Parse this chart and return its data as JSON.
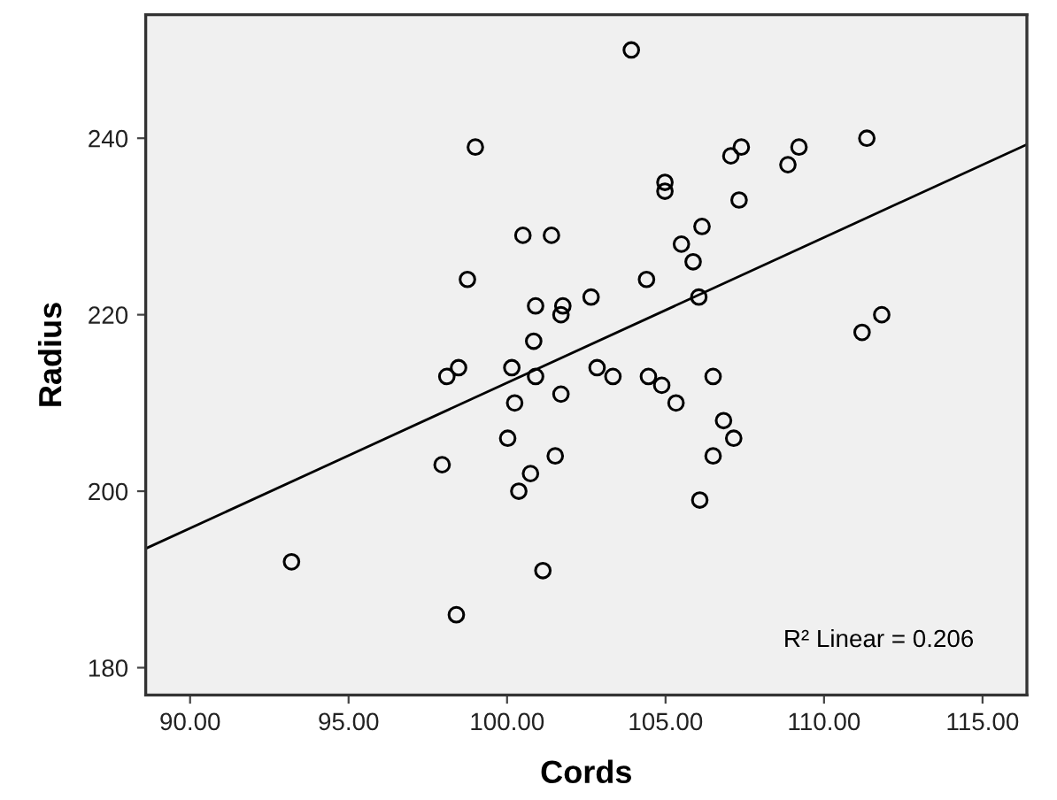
{
  "chart_data": {
    "type": "scatter",
    "xlabel": "Cords",
    "ylabel": "Radius",
    "xlim": [
      88.6,
      116.4
    ],
    "ylim": [
      176.9,
      254.0
    ],
    "xticks": [
      {
        "value": 90,
        "label": "90.00"
      },
      {
        "value": 95,
        "label": "95.00"
      },
      {
        "value": 100,
        "label": "100.00"
      },
      {
        "value": 105,
        "label": "105.00"
      },
      {
        "value": 110,
        "label": "110.00"
      },
      {
        "value": 115,
        "label": "115.00"
      }
    ],
    "yticks": [
      180,
      200,
      220,
      240
    ],
    "grid": false,
    "legend": false,
    "annotations": [
      "R² Linear = 0.206"
    ],
    "series": [
      {
        "type": "scatter",
        "color": "#000000",
        "marker": "circle",
        "x": [
          99.0,
          100.5,
          101.4,
          98.75,
          100.9,
          101.76,
          101.7,
          102.65,
          100.84,
          98.1,
          98.47,
          100.15,
          100.9,
          102.84,
          101.7,
          100.24,
          100.02,
          97.95,
          101.52,
          100.74,
          100.37,
          93.2,
          101.13,
          98.4,
          103.92,
          111.35,
          107.39,
          107.06,
          109.21,
          108.86,
          104.98,
          104.98,
          107.32,
          106.15,
          105.5,
          105.87,
          104.4,
          106.05,
          111.82,
          111.2,
          103.34,
          104.46,
          104.88,
          105.33,
          106.5,
          106.83,
          107.15,
          106.5,
          106.08
        ],
        "values": [
          239,
          229,
          229,
          224,
          221,
          221,
          220,
          222,
          217,
          213,
          214,
          214,
          213,
          214,
          211,
          210,
          206,
          203,
          204,
          202,
          200,
          192,
          191,
          186,
          250,
          240,
          239,
          238,
          239,
          237,
          235,
          234,
          233,
          230,
          228,
          226,
          224,
          222,
          220,
          218,
          213,
          213,
          212,
          210,
          213,
          208,
          206,
          204,
          199
        ]
      },
      {
        "type": "line",
        "color": "#000000",
        "marker": "none",
        "line_style": "solid",
        "x": [
          88.6,
          116.4
        ],
        "values": [
          193.5,
          239.3
        ]
      }
    ]
  }
}
